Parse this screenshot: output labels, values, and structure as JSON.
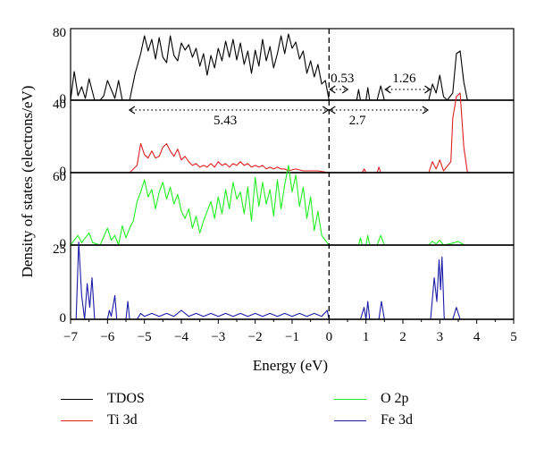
{
  "chart_data": {
    "type": "line",
    "xlabel": "Energy (eV)",
    "ylabel": "Density of states (electrons/eV)",
    "xlim": [
      -7,
      5
    ],
    "x_ticks": [
      "−7",
      "−6",
      "−5",
      "−4",
      "−3",
      "−2",
      "−1",
      "0",
      "1",
      "2",
      "3",
      "4",
      "5"
    ],
    "fermi_level": 0,
    "panels": [
      {
        "name": "TDOS",
        "color": "#000000",
        "ylim": [
          0,
          80
        ],
        "y_ticks": [
          "0",
          "80"
        ],
        "series": [
          [
            -7,
            0
          ],
          [
            -6.9,
            32
          ],
          [
            -6.8,
            5
          ],
          [
            -6.7,
            15
          ],
          [
            -6.6,
            2
          ],
          [
            -6.5,
            24
          ],
          [
            -6.35,
            0
          ],
          [
            -6.2,
            0
          ],
          [
            -6.1,
            5
          ],
          [
            -6.0,
            22
          ],
          [
            -5.9,
            12
          ],
          [
            -5.8,
            2
          ],
          [
            -5.7,
            22
          ],
          [
            -5.6,
            0
          ],
          [
            -5.4,
            0
          ],
          [
            -5.25,
            30
          ],
          [
            -5.1,
            52
          ],
          [
            -5.0,
            72
          ],
          [
            -4.9,
            55
          ],
          [
            -4.8,
            68
          ],
          [
            -4.7,
            46
          ],
          [
            -4.6,
            70
          ],
          [
            -4.5,
            48
          ],
          [
            -4.4,
            42
          ],
          [
            -4.3,
            72
          ],
          [
            -4.2,
            50
          ],
          [
            -4.1,
            44
          ],
          [
            -4.0,
            64
          ],
          [
            -3.9,
            56
          ],
          [
            -3.8,
            62
          ],
          [
            -3.7,
            48
          ],
          [
            -3.6,
            58
          ],
          [
            -3.5,
            38
          ],
          [
            -3.4,
            52
          ],
          [
            -3.3,
            28
          ],
          [
            -3.2,
            50
          ],
          [
            -3.1,
            36
          ],
          [
            -3.0,
            58
          ],
          [
            -2.9,
            44
          ],
          [
            -2.8,
            66
          ],
          [
            -2.7,
            48
          ],
          [
            -2.6,
            68
          ],
          [
            -2.5,
            45
          ],
          [
            -2.4,
            64
          ],
          [
            -2.3,
            40
          ],
          [
            -2.2,
            55
          ],
          [
            -2.1,
            30
          ],
          [
            -2.0,
            56
          ],
          [
            -1.9,
            38
          ],
          [
            -1.8,
            68
          ],
          [
            -1.7,
            44
          ],
          [
            -1.6,
            60
          ],
          [
            -1.5,
            36
          ],
          [
            -1.4,
            52
          ],
          [
            -1.3,
            72
          ],
          [
            -1.2,
            52
          ],
          [
            -1.1,
            74
          ],
          [
            -1.0,
            58
          ],
          [
            -0.9,
            65
          ],
          [
            -0.8,
            46
          ],
          [
            -0.7,
            55
          ],
          [
            -0.6,
            30
          ],
          [
            -0.5,
            44
          ],
          [
            -0.4,
            26
          ],
          [
            -0.3,
            40
          ],
          [
            -0.2,
            18
          ],
          [
            -0.1,
            22
          ],
          [
            0,
            0
          ],
          [
            0.75,
            0
          ],
          [
            0.8,
            12
          ],
          [
            0.85,
            0
          ],
          [
            1.0,
            0
          ],
          [
            1.05,
            14
          ],
          [
            1.1,
            0
          ],
          [
            1.3,
            0
          ],
          [
            1.4,
            16
          ],
          [
            1.5,
            0
          ],
          [
            2.7,
            0
          ],
          [
            2.8,
            18
          ],
          [
            2.9,
            8
          ],
          [
            3.0,
            28
          ],
          [
            3.1,
            4
          ],
          [
            3.2,
            0
          ],
          [
            3.35,
            8
          ],
          [
            3.45,
            52
          ],
          [
            3.55,
            55
          ],
          [
            3.65,
            20
          ],
          [
            3.75,
            0
          ],
          [
            5,
            0
          ]
        ]
      },
      {
        "name": "Ti 3d",
        "color": "#e02020",
        "ylim": [
          0,
          40
        ],
        "y_ticks": [
          "0",
          "40"
        ],
        "series": [
          [
            -7,
            0
          ],
          [
            -5.4,
            0
          ],
          [
            -5.3,
            2
          ],
          [
            -5.2,
            4
          ],
          [
            -5.1,
            16
          ],
          [
            -5.0,
            10
          ],
          [
            -4.9,
            8
          ],
          [
            -4.8,
            12
          ],
          [
            -4.7,
            8
          ],
          [
            -4.6,
            9
          ],
          [
            -4.5,
            14
          ],
          [
            -4.4,
            16
          ],
          [
            -4.3,
            12
          ],
          [
            -4.2,
            9
          ],
          [
            -4.1,
            13
          ],
          [
            -4.0,
            7
          ],
          [
            -3.9,
            9
          ],
          [
            -3.8,
            6
          ],
          [
            -3.7,
            4
          ],
          [
            -3.6,
            5
          ],
          [
            -3.5,
            3
          ],
          [
            -3.4,
            4
          ],
          [
            -3.3,
            3
          ],
          [
            -3.2,
            5
          ],
          [
            -3.1,
            3
          ],
          [
            -3.0,
            6
          ],
          [
            -2.9,
            4
          ],
          [
            -2.8,
            5
          ],
          [
            -2.7,
            3
          ],
          [
            -2.6,
            5
          ],
          [
            -2.5,
            4
          ],
          [
            -2.4,
            6
          ],
          [
            -2.3,
            4
          ],
          [
            -2.2,
            5
          ],
          [
            -2.1,
            3
          ],
          [
            -2.0,
            4
          ],
          [
            -1.9,
            3
          ],
          [
            -1.8,
            4
          ],
          [
            -1.7,
            2
          ],
          [
            -1.6,
            3
          ],
          [
            -1.5,
            2
          ],
          [
            -1.4,
            3
          ],
          [
            -1.3,
            2
          ],
          [
            -1.2,
            2
          ],
          [
            -1.1,
            1
          ],
          [
            -0.9,
            2
          ],
          [
            -0.7,
            1
          ],
          [
            -0.5,
            1
          ],
          [
            -0.3,
            1
          ],
          [
            0,
            0
          ],
          [
            0.9,
            0
          ],
          [
            0.95,
            2
          ],
          [
            1.0,
            0
          ],
          [
            1.3,
            0
          ],
          [
            1.35,
            3
          ],
          [
            1.4,
            0
          ],
          [
            2.7,
            0
          ],
          [
            2.8,
            6
          ],
          [
            2.9,
            2
          ],
          [
            3.0,
            7
          ],
          [
            3.1,
            1
          ],
          [
            3.3,
            6
          ],
          [
            3.35,
            30
          ],
          [
            3.45,
            42
          ],
          [
            3.55,
            44
          ],
          [
            3.65,
            14
          ],
          [
            3.75,
            0
          ],
          [
            5,
            0
          ]
        ]
      },
      {
        "name": "O 2p",
        "color": "#22ee22",
        "ylim": [
          0,
          60
        ],
        "y_ticks": [
          "0",
          "60"
        ],
        "series": [
          [
            -7,
            0
          ],
          [
            -6.9,
            4
          ],
          [
            -6.8,
            8
          ],
          [
            -6.7,
            2
          ],
          [
            -6.6,
            6
          ],
          [
            -6.5,
            10
          ],
          [
            -6.4,
            2
          ],
          [
            -6.2,
            0
          ],
          [
            -6.0,
            14
          ],
          [
            -5.9,
            4
          ],
          [
            -5.8,
            8
          ],
          [
            -5.7,
            0
          ],
          [
            -5.6,
            16
          ],
          [
            -5.5,
            6
          ],
          [
            -5.4,
            14
          ],
          [
            -5.3,
            20
          ],
          [
            -5.2,
            36
          ],
          [
            -5.1,
            44
          ],
          [
            -5.0,
            54
          ],
          [
            -4.9,
            40
          ],
          [
            -4.8,
            46
          ],
          [
            -4.7,
            30
          ],
          [
            -4.6,
            44
          ],
          [
            -4.5,
            52
          ],
          [
            -4.4,
            38
          ],
          [
            -4.3,
            48
          ],
          [
            -4.2,
            34
          ],
          [
            -4.1,
            42
          ],
          [
            -4.0,
            28
          ],
          [
            -3.9,
            22
          ],
          [
            -3.8,
            30
          ],
          [
            -3.7,
            14
          ],
          [
            -3.6,
            24
          ],
          [
            -3.5,
            10
          ],
          [
            -3.4,
            20
          ],
          [
            -3.3,
            28
          ],
          [
            -3.2,
            36
          ],
          [
            -3.1,
            22
          ],
          [
            -3.0,
            40
          ],
          [
            -2.9,
            26
          ],
          [
            -2.8,
            46
          ],
          [
            -2.7,
            30
          ],
          [
            -2.6,
            52
          ],
          [
            -2.5,
            38
          ],
          [
            -2.4,
            44
          ],
          [
            -2.3,
            26
          ],
          [
            -2.2,
            48
          ],
          [
            -2.1,
            20
          ],
          [
            -2.0,
            56
          ],
          [
            -1.9,
            32
          ],
          [
            -1.8,
            52
          ],
          [
            -1.7,
            34
          ],
          [
            -1.6,
            46
          ],
          [
            -1.5,
            24
          ],
          [
            -1.4,
            54
          ],
          [
            -1.3,
            30
          ],
          [
            -1.2,
            50
          ],
          [
            -1.1,
            66
          ],
          [
            -1.0,
            44
          ],
          [
            -0.9,
            58
          ],
          [
            -0.8,
            32
          ],
          [
            -0.7,
            48
          ],
          [
            -0.6,
            22
          ],
          [
            -0.5,
            40
          ],
          [
            -0.4,
            12
          ],
          [
            -0.3,
            28
          ],
          [
            -0.2,
            8
          ],
          [
            -0.1,
            4
          ],
          [
            0,
            0
          ],
          [
            0.8,
            0
          ],
          [
            0.85,
            6
          ],
          [
            0.9,
            0
          ],
          [
            1.0,
            0
          ],
          [
            1.05,
            8
          ],
          [
            1.1,
            0
          ],
          [
            1.3,
            0
          ],
          [
            1.4,
            8
          ],
          [
            1.5,
            0
          ],
          [
            2.7,
            0
          ],
          [
            2.8,
            3
          ],
          [
            2.9,
            1
          ],
          [
            3.0,
            4
          ],
          [
            3.1,
            0
          ],
          [
            3.4,
            2
          ],
          [
            3.5,
            3
          ],
          [
            3.6,
            1
          ],
          [
            3.7,
            0
          ],
          [
            5,
            0
          ]
        ]
      },
      {
        "name": "Fe 3d",
        "color": "#1a1aa8",
        "ylim": [
          0,
          25
        ],
        "y_ticks": [
          "0",
          "25"
        ],
        "series": [
          [
            -7,
            0
          ],
          [
            -6.85,
            0
          ],
          [
            -6.78,
            26
          ],
          [
            -6.7,
            8
          ],
          [
            -6.62,
            0
          ],
          [
            -6.55,
            12
          ],
          [
            -6.48,
            4
          ],
          [
            -6.42,
            14
          ],
          [
            -6.35,
            0
          ],
          [
            -6.0,
            0
          ],
          [
            -5.95,
            3
          ],
          [
            -5.9,
            1
          ],
          [
            -5.8,
            8
          ],
          [
            -5.75,
            0
          ],
          [
            -5.5,
            0
          ],
          [
            -5.45,
            6
          ],
          [
            -5.4,
            0
          ],
          [
            -5.2,
            0
          ],
          [
            -5.1,
            2
          ],
          [
            -5.0,
            1
          ],
          [
            -4.8,
            2
          ],
          [
            -4.6,
            1
          ],
          [
            -4.4,
            2
          ],
          [
            -4.2,
            1
          ],
          [
            -4.0,
            3
          ],
          [
            -3.8,
            1
          ],
          [
            -3.6,
            2
          ],
          [
            -3.4,
            1
          ],
          [
            -3.2,
            2
          ],
          [
            -3.0,
            1
          ],
          [
            -2.8,
            2
          ],
          [
            -2.6,
            1
          ],
          [
            -2.4,
            2
          ],
          [
            -2.2,
            1
          ],
          [
            -2.0,
            2
          ],
          [
            -1.8,
            1
          ],
          [
            -1.6,
            2
          ],
          [
            -1.4,
            1
          ],
          [
            -1.2,
            2
          ],
          [
            -1.0,
            1
          ],
          [
            -0.8,
            2
          ],
          [
            -0.6,
            1
          ],
          [
            -0.4,
            2
          ],
          [
            -0.2,
            1
          ],
          [
            -0.05,
            3
          ],
          [
            0,
            0
          ],
          [
            0.85,
            0
          ],
          [
            0.95,
            4
          ],
          [
            1.0,
            0
          ],
          [
            1.05,
            6
          ],
          [
            1.1,
            0
          ],
          [
            1.35,
            0
          ],
          [
            1.42,
            6
          ],
          [
            1.5,
            0
          ],
          [
            2.75,
            0
          ],
          [
            2.85,
            14
          ],
          [
            2.92,
            6
          ],
          [
            2.98,
            20
          ],
          [
            3.02,
            10
          ],
          [
            3.06,
            21
          ],
          [
            3.12,
            0
          ],
          [
            3.35,
            0
          ],
          [
            3.45,
            4
          ],
          [
            3.55,
            0
          ],
          [
            5,
            0
          ]
        ]
      }
    ],
    "annotations": [
      {
        "label": "0.53",
        "x1": 0,
        "x2": 0.53,
        "panel": 0,
        "y": 8
      },
      {
        "label": "1.26",
        "x1": 1.5,
        "x2": 2.76,
        "panel": 0,
        "y": 8
      },
      {
        "label": "5.43",
        "x1": -5.43,
        "x2": 0,
        "panel": 0,
        "y": -8
      },
      {
        "label": "2.7",
        "x1": 0,
        "x2": 2.7,
        "panel": 0,
        "y": -8
      }
    ],
    "legend": [
      {
        "label": "TDOS",
        "color": "#000000"
      },
      {
        "label": "Ti 3d",
        "color": "#e02020"
      },
      {
        "label": "O 2p",
        "color": "#22ee22"
      },
      {
        "label": "Fe 3d",
        "color": "#1a1aa8"
      }
    ]
  }
}
